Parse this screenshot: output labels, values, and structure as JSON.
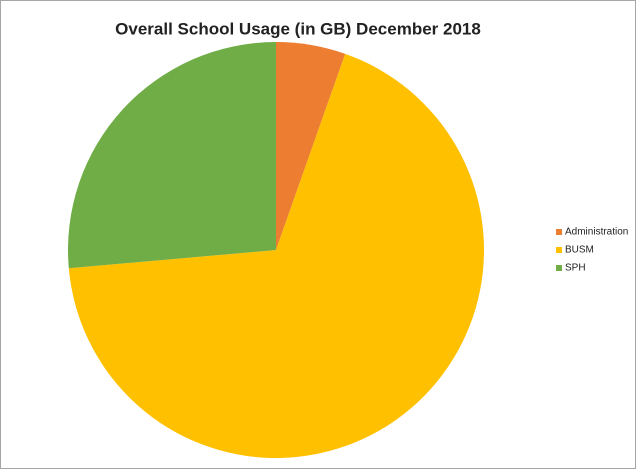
{
  "chart_data": {
    "type": "pie",
    "title": "Overall School Usage (in GB) December 2018",
    "categories": [
      "Administration",
      "BUSM",
      "SPH"
    ],
    "values": [
      5.4,
      68.2,
      26.4
    ],
    "colors": [
      "#ed7d31",
      "#ffc000",
      "#70ad47"
    ],
    "legend": "right"
  }
}
